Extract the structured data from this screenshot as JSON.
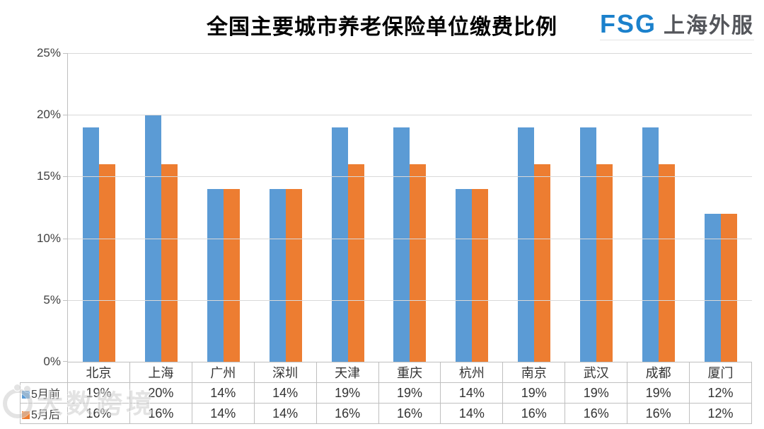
{
  "title": "全国主要城市养老保险单位缴费比例",
  "logo": {
    "fsg": "FSG",
    "company": "上海外服",
    "fsg_color": "#1B81CC",
    "company_color": "#54565B"
  },
  "watermark": {
    "text": "大数跨境"
  },
  "chart_data": {
    "type": "bar",
    "title": "全国主要城市养老保险单位缴费比例",
    "categories": [
      "北京",
      "上海",
      "广州",
      "深圳",
      "天津",
      "重庆",
      "杭州",
      "南京",
      "武汉",
      "成都",
      "厦门"
    ],
    "series": [
      {
        "name": "5月前",
        "color": "#5B9BD5",
        "values": [
          19,
          20,
          14,
          14,
          19,
          19,
          14,
          19,
          19,
          19,
          12
        ]
      },
      {
        "name": "5月后",
        "color": "#ED7D31",
        "values": [
          16,
          16,
          14,
          14,
          16,
          16,
          14,
          16,
          16,
          16,
          12
        ]
      }
    ],
    "value_suffix": "%",
    "ylim": [
      0,
      25
    ],
    "ytick_labels": [
      "25%",
      "20%",
      "15%",
      "10%",
      "5%",
      "0%"
    ],
    "grid": true,
    "legend_position": "data-table-left",
    "data_table": true,
    "colors": {
      "gridline": "#D9D9D9",
      "axis": "#BFBFBF",
      "table_border": "#BFBFBF",
      "label_text": "#404040",
      "table_text": "#333333"
    }
  }
}
